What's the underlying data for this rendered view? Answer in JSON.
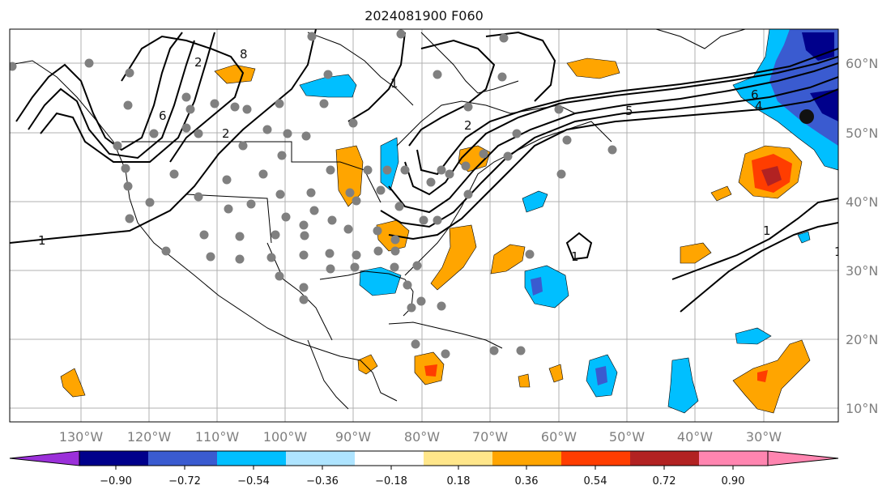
{
  "title": "2024081900 F060",
  "longitude_labels": [
    "130°W",
    "120°W",
    "110°W",
    "100°W",
    "90°W",
    "80°W",
    "70°W",
    "60°W",
    "50°W",
    "40°W",
    "30°W"
  ],
  "latitude_labels": [
    "60°N",
    "50°N",
    "40°N",
    "30°N",
    "20°N",
    "10°N"
  ],
  "contour_labels": [
    "1",
    "1",
    "1",
    "1",
    "1",
    "2",
    "2",
    "2",
    "4",
    "5",
    "6",
    "6",
    "8"
  ],
  "colorbar": {
    "ticks": [
      "−0.90",
      "−0.72",
      "−0.54",
      "−0.36",
      "−0.18",
      "0.18",
      "0.36",
      "0.54",
      "0.72",
      "0.90"
    ],
    "colors": [
      "#9b30d9",
      "#00008b",
      "#3a5bd0",
      "#00bfff",
      "#aee4ff",
      "#ffffff",
      "#ffe68a",
      "#ffa500",
      "#ff3d00",
      "#b22222",
      "#ff85b0"
    ]
  },
  "colors": {
    "coast": "#000000",
    "contour": "#000000",
    "station": "#808080",
    "grid": "#b0b0b0"
  }
}
